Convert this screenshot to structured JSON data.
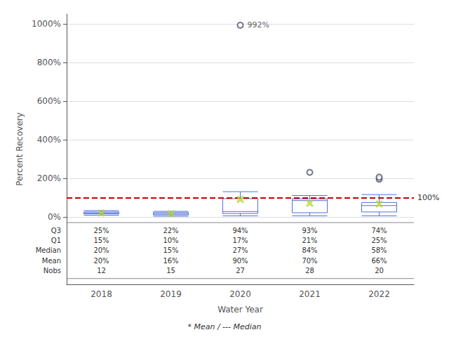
{
  "chart_data": {
    "type": "boxplot",
    "categories": [
      "2018",
      "2019",
      "2020",
      "2021",
      "2022"
    ],
    "series": [
      {
        "type": "boxplot",
        "values": [
          {
            "whisker_low": 8,
            "q1": 15,
            "median": 20,
            "q3": 25,
            "whisker_high": 32
          },
          {
            "whisker_low": 3,
            "q1": 10,
            "median": 15,
            "q3": 22,
            "whisker_high": 28
          },
          {
            "whisker_low": 5,
            "q1": 17,
            "median": 27,
            "q3": 94,
            "whisker_high": 130
          },
          {
            "whisker_low": 5,
            "q1": 21,
            "median": 84,
            "q3": 93,
            "whisker_high": 110
          },
          {
            "whisker_low": 5,
            "q1": 25,
            "median": 58,
            "q3": 74,
            "whisker_high": 115
          }
        ]
      },
      {
        "type": "scatter",
        "marker": "x",
        "values": [
          20,
          16,
          90,
          70,
          66
        ]
      },
      {
        "type": "scatter",
        "marker": "circle",
        "values": [
          [],
          [],
          [
            992
          ],
          [
            230
          ],
          [
            195,
            205
          ]
        ]
      }
    ],
    "ref_line": {
      "value": 100,
      "label": "100%",
      "color": "#cc0000",
      "line_style": "dashed"
    },
    "annotations": [
      {
        "x": "2020",
        "y": 992,
        "text": "992%"
      }
    ],
    "table_rows": [
      "Q3",
      "Q1",
      "Median",
      "Mean",
      "Nobs"
    ],
    "table_values": [
      [
        "25%",
        "22%",
        "94%",
        "93%",
        "74%"
      ],
      [
        "15%",
        "10%",
        "17%",
        "21%",
        "25%"
      ],
      [
        "20%",
        "15%",
        "27%",
        "84%",
        "58%"
      ],
      [
        "20%",
        "16%",
        "90%",
        "70%",
        "66%"
      ],
      [
        "12",
        "15",
        "27",
        "28",
        "20"
      ]
    ],
    "xlabel": "Water Year",
    "ylabel": "Percent Recovery",
    "footnote": "* Mean / --- Median",
    "ylim": [
      -350,
      1050
    ],
    "yticks": [
      {
        "value": 0,
        "label": "0%"
      },
      {
        "value": 200,
        "label": "200%"
      },
      {
        "value": 400,
        "label": "400%"
      },
      {
        "value": 600,
        "label": "600%"
      },
      {
        "value": 800,
        "label": "800%"
      },
      {
        "value": 1000,
        "label": "1000%"
      }
    ],
    "grid": true
  }
}
